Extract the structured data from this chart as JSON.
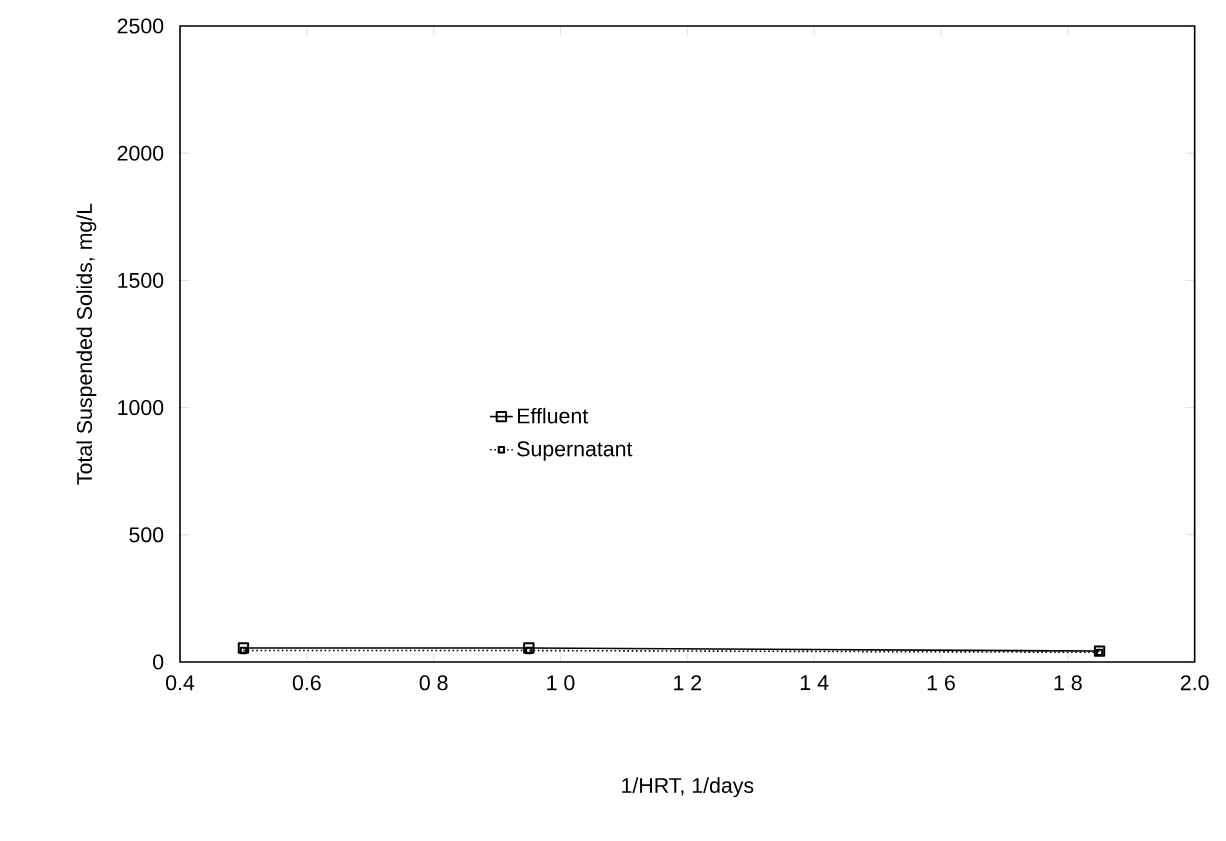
{
  "chart_data": {
    "type": "line",
    "xlabel": "1/HRT, 1/days",
    "ylabel": "Total Suspended Solids, mg/L",
    "x": [
      0.5,
      0.95,
      1.85
    ],
    "series": [
      {
        "name": "Effluent",
        "color": "#000000",
        "values": [
          55,
          55,
          43
        ],
        "marker": "square",
        "line_style": "solid"
      },
      {
        "name": "Supernatant",
        "color": "#000000",
        "values": [
          45,
          45,
          38
        ],
        "marker": "square",
        "line_style": "dotted"
      }
    ],
    "xlim": [
      0.4,
      2.0
    ],
    "xticks": [
      0.4,
      0.6,
      {
        "value": 0.8,
        "label": "0 8"
      },
      {
        "value": 1.0,
        "label": "1 0"
      },
      {
        "value": 1.2,
        "label": "1 2"
      },
      {
        "value": 1.4,
        "label": "1 4"
      },
      {
        "value": 1.6,
        "label": "1 6"
      },
      {
        "value": 1.8,
        "label": "1 8"
      },
      {
        "value": 2.0,
        "label": "2.0"
      }
    ],
    "ylim": [
      0,
      2500
    ],
    "yticks": [
      0,
      500,
      1000,
      1500,
      2000,
      2500
    ],
    "grid": false,
    "legend": "center"
  }
}
